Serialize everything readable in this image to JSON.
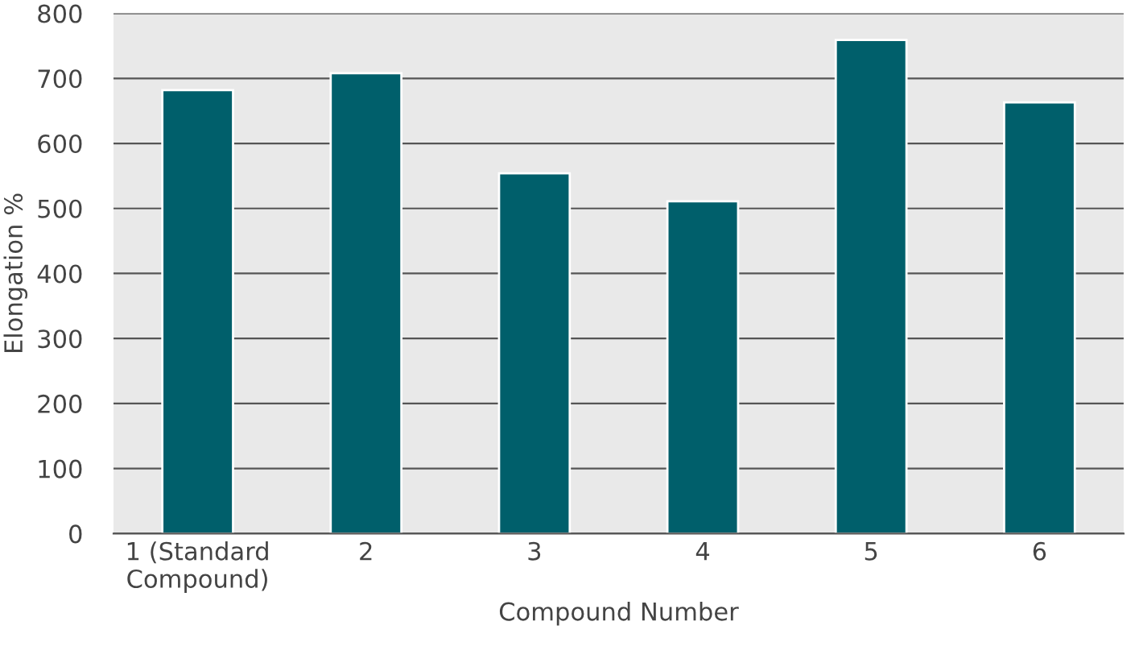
{
  "chart_data": {
    "type": "bar",
    "xlabel": "Compound Number",
    "ylabel": "Elongation %",
    "categories": [
      "1 (Standard\nCompound)",
      "2",
      "3",
      "4",
      "5",
      "6"
    ],
    "values": [
      682,
      708,
      554,
      511,
      759,
      663
    ],
    "color": "#005f6b",
    "ylim": [
      0,
      800
    ],
    "yticks": [
      0,
      100,
      200,
      300,
      400,
      500,
      600,
      700,
      800
    ],
    "grid": "y"
  }
}
